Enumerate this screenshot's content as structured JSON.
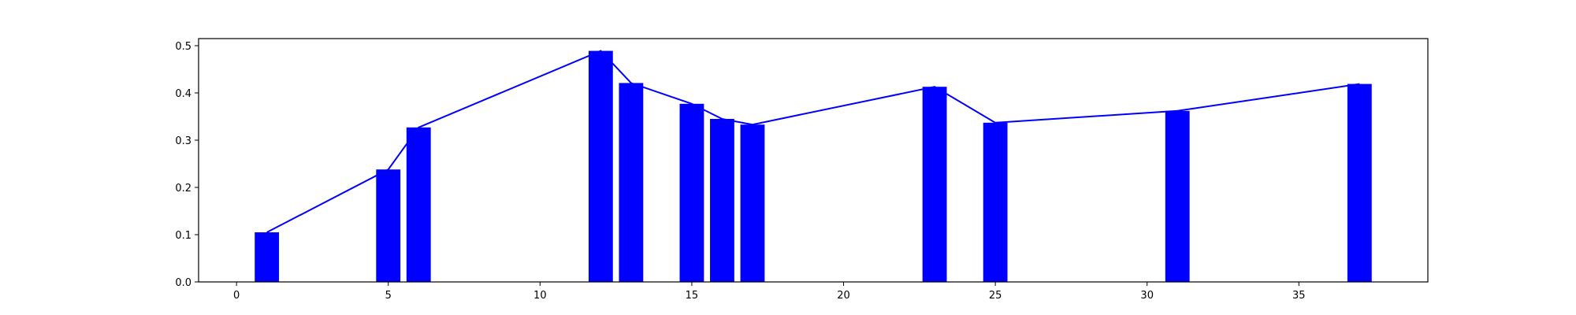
{
  "chart_data": {
    "type": "bar",
    "title": "",
    "xlabel": "",
    "ylabel": "",
    "xlim": [
      -1.25,
      39.25
    ],
    "ylim": [
      0,
      0.515
    ],
    "grid": false,
    "bar_width": 0.8,
    "colors": {
      "bar": "#0000ff",
      "line": "#0000ff",
      "axes": "#000000",
      "background": "#ffffff"
    },
    "x_ticks": [
      0,
      5,
      10,
      15,
      20,
      25,
      30,
      35
    ],
    "x_tick_labels": [
      "0",
      "5",
      "10",
      "15",
      "20",
      "25",
      "30",
      "35"
    ],
    "y_ticks": [
      0.0,
      0.1,
      0.2,
      0.3,
      0.4,
      0.5
    ],
    "y_tick_labels": [
      "0.0",
      "0.1",
      "0.2",
      "0.3",
      "0.4",
      "0.5"
    ],
    "x": [
      1,
      5,
      6,
      12,
      13,
      15,
      16,
      17,
      23,
      25,
      31,
      37
    ],
    "values": [
      0.105,
      0.238,
      0.327,
      0.489,
      0.421,
      0.377,
      0.345,
      0.333,
      0.413,
      0.337,
      0.362,
      0.419
    ],
    "line_overlay": true
  }
}
